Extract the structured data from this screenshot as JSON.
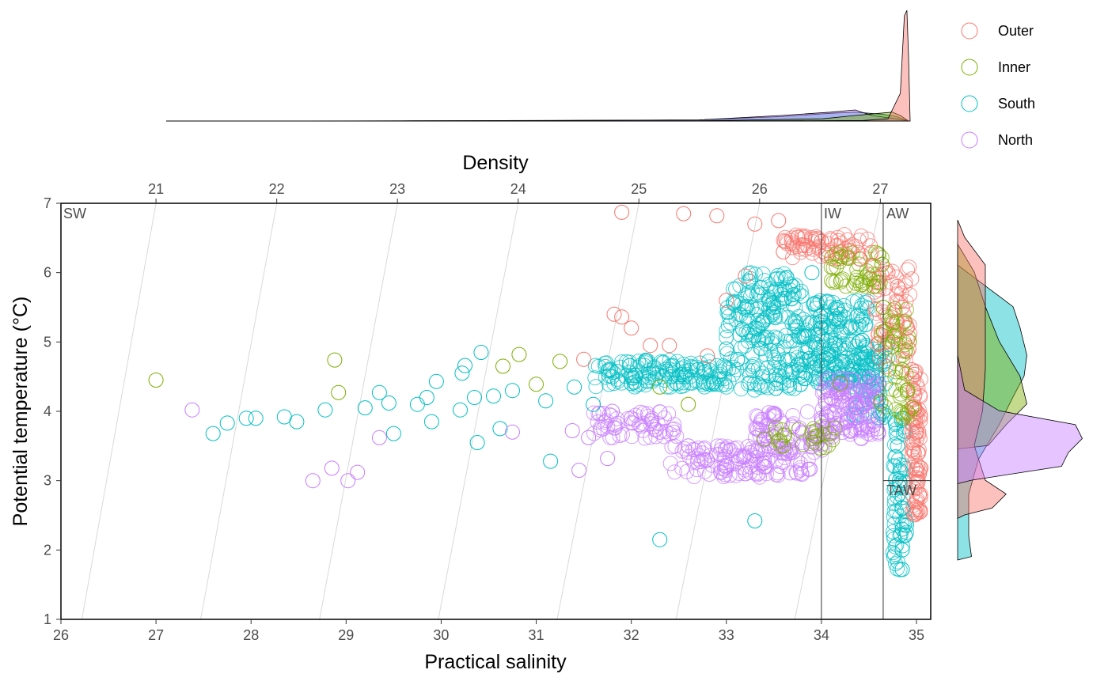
{
  "chart_data": {
    "type": "scatter",
    "title": "",
    "xlabel": "Practical salinity",
    "ylabel": "Potential temperature (°C)",
    "top_axis_label": "Density",
    "xlim": [
      26,
      35.15
    ],
    "ylim": [
      1,
      7
    ],
    "x_ticks": [
      "26",
      "27",
      "28",
      "29",
      "30",
      "31",
      "32",
      "33",
      "34",
      "35"
    ],
    "y_ticks": [
      "1",
      "2",
      "3",
      "4",
      "5",
      "6",
      "7"
    ],
    "density_ticks": [
      "21",
      "22",
      "23",
      "24",
      "25",
      "26",
      "27"
    ],
    "density_tick_salinity": [
      27.0,
      28.27,
      29.54,
      30.81,
      32.08,
      33.35,
      34.62
    ],
    "isopycnal_bottom_salinity": [
      26.22,
      27.47,
      28.72,
      29.97,
      31.22,
      32.47,
      33.72
    ],
    "water_mass_lines": {
      "IW_salinity": 34.0,
      "AW_salinity": 34.65,
      "TAW_temperature": 3.0
    },
    "region_labels": [
      "SW",
      "IW",
      "AW",
      "TAW"
    ],
    "series": [
      {
        "name": "Outer",
        "color": "#F8766D"
      },
      {
        "name": "Inner",
        "color": "#7CAE00"
      },
      {
        "name": "South",
        "color": "#00BFC4"
      },
      {
        "name": "North",
        "color": "#C77CFF"
      }
    ],
    "scatter_points": {
      "Outer": [
        [
          31.82,
          5.4
        ],
        [
          31.9,
          5.36
        ],
        [
          32.0,
          5.2
        ],
        [
          32.2,
          4.95
        ],
        [
          32.4,
          4.95
        ],
        [
          31.9,
          6.87
        ],
        [
          32.55,
          6.85
        ],
        [
          32.9,
          6.82
        ],
        [
          33.3,
          6.7
        ],
        [
          33.55,
          6.75
        ],
        [
          33.0,
          5.6
        ],
        [
          33.2,
          5.95
        ],
        [
          31.5,
          4.75
        ],
        [
          32.8,
          4.8
        ],
        [
          33.6,
          6.3
        ],
        [
          33.8,
          6.4
        ],
        [
          34.0,
          6.45
        ],
        [
          34.2,
          6.3
        ],
        [
          34.4,
          6.2
        ],
        [
          34.55,
          6.1
        ],
        [
          34.7,
          6.0
        ],
        [
          34.8,
          5.8
        ],
        [
          34.85,
          5.5
        ],
        [
          34.9,
          5.2
        ],
        [
          34.92,
          4.9
        ],
        [
          34.95,
          4.6
        ],
        [
          34.97,
          4.3
        ],
        [
          35.0,
          4.0
        ],
        [
          35.0,
          3.7
        ],
        [
          35.02,
          3.4
        ],
        [
          35.03,
          3.1
        ],
        [
          35.03,
          2.8
        ],
        [
          35.04,
          2.55
        ]
      ],
      "Inner": [
        [
          27.0,
          4.45
        ],
        [
          28.88,
          4.74
        ],
        [
          28.92,
          4.27
        ],
        [
          30.65,
          4.65
        ],
        [
          30.82,
          4.82
        ],
        [
          31.0,
          4.39
        ],
        [
          31.25,
          4.72
        ],
        [
          32.3,
          4.35
        ],
        [
          32.6,
          4.1
        ],
        [
          33.4,
          3.6
        ],
        [
          33.6,
          3.5
        ],
        [
          33.9,
          3.7
        ],
        [
          34.2,
          4.4
        ],
        [
          34.55,
          5.8
        ],
        [
          34.65,
          5.5
        ],
        [
          34.75,
          5.0
        ],
        [
          34.85,
          4.6
        ],
        [
          34.9,
          4.3
        ],
        [
          34.95,
          4.05
        ]
      ],
      "South": [
        [
          27.6,
          3.68
        ],
        [
          27.75,
          3.83
        ],
        [
          27.95,
          3.9
        ],
        [
          28.05,
          3.9
        ],
        [
          28.35,
          3.92
        ],
        [
          28.48,
          3.85
        ],
        [
          28.78,
          4.02
        ],
        [
          29.2,
          4.05
        ],
        [
          29.35,
          4.27
        ],
        [
          29.45,
          4.12
        ],
        [
          29.5,
          3.68
        ],
        [
          29.75,
          4.1
        ],
        [
          29.85,
          4.2
        ],
        [
          29.9,
          3.85
        ],
        [
          29.95,
          4.43
        ],
        [
          30.2,
          4.02
        ],
        [
          30.22,
          4.55
        ],
        [
          30.25,
          4.66
        ],
        [
          30.35,
          4.2
        ],
        [
          30.38,
          3.55
        ],
        [
          30.42,
          4.85
        ],
        [
          30.55,
          4.22
        ],
        [
          30.62,
          3.75
        ],
        [
          30.75,
          4.3
        ],
        [
          31.1,
          4.15
        ],
        [
          31.15,
          3.28
        ],
        [
          31.4,
          4.35
        ],
        [
          31.6,
          4.1
        ],
        [
          31.8,
          4.5
        ],
        [
          32.0,
          4.4
        ],
        [
          32.3,
          2.15
        ],
        [
          32.5,
          4.5
        ],
        [
          32.7,
          4.6
        ],
        [
          33.0,
          4.9
        ],
        [
          33.3,
          2.42
        ],
        [
          33.3,
          5.2
        ],
        [
          33.5,
          5.5
        ],
        [
          33.7,
          5.8
        ],
        [
          33.9,
          6.0
        ],
        [
          34.0,
          5.2
        ],
        [
          34.1,
          4.8
        ],
        [
          34.2,
          5.4
        ],
        [
          34.4,
          5.0
        ],
        [
          34.5,
          4.5
        ],
        [
          34.65,
          4.0
        ],
        [
          34.8,
          3.5
        ],
        [
          34.82,
          3.0
        ],
        [
          34.85,
          2.6
        ],
        [
          34.85,
          2.3
        ],
        [
          34.85,
          2.0
        ],
        [
          34.85,
          1.72
        ]
      ],
      "North": [
        [
          27.38,
          4.02
        ],
        [
          28.65,
          3.0
        ],
        [
          28.85,
          3.18
        ],
        [
          29.02,
          3.0
        ],
        [
          29.12,
          3.12
        ],
        [
          29.35,
          3.62
        ],
        [
          30.75,
          3.7
        ],
        [
          31.38,
          3.72
        ],
        [
          31.45,
          3.15
        ],
        [
          31.55,
          3.62
        ],
        [
          31.75,
          3.32
        ],
        [
          31.8,
          4.0
        ],
        [
          32.0,
          3.9
        ],
        [
          32.3,
          3.7
        ],
        [
          32.6,
          3.5
        ],
        [
          32.8,
          3.3
        ],
        [
          33.0,
          3.2
        ],
        [
          33.2,
          3.1
        ],
        [
          33.4,
          3.2
        ],
        [
          33.6,
          3.4
        ],
        [
          33.8,
          3.7
        ],
        [
          34.0,
          3.9
        ],
        [
          34.1,
          4.2
        ],
        [
          34.3,
          4.3
        ],
        [
          34.45,
          4.1
        ],
        [
          34.55,
          3.8
        ],
        [
          34.6,
          3.7
        ]
      ]
    },
    "clouds": [
      {
        "series": "South",
        "bands": [
          [
            31.6,
            33.0,
            4.35,
            4.75,
            140
          ],
          [
            33.0,
            33.8,
            4.3,
            6.0,
            220
          ],
          [
            33.8,
            34.5,
            4.4,
            5.6,
            200
          ],
          [
            34.3,
            34.7,
            3.9,
            5.0,
            80
          ],
          [
            34.75,
            34.9,
            1.7,
            3.9,
            70
          ]
        ]
      },
      {
        "series": "North",
        "bands": [
          [
            32.4,
            33.9,
            3.05,
            3.5,
            120
          ],
          [
            33.3,
            34.1,
            3.4,
            4.0,
            80
          ],
          [
            34.0,
            34.6,
            3.6,
            4.5,
            140
          ],
          [
            31.6,
            32.5,
            3.6,
            4.0,
            60
          ]
        ]
      },
      {
        "series": "Outer",
        "bands": [
          [
            33.6,
            34.55,
            6.2,
            6.55,
            70
          ],
          [
            34.55,
            34.95,
            4.6,
            6.1,
            70
          ],
          [
            34.95,
            35.05,
            2.5,
            4.6,
            90
          ]
        ]
      },
      {
        "series": "Inner",
        "bands": [
          [
            34.1,
            34.65,
            5.8,
            6.3,
            50
          ],
          [
            34.6,
            34.95,
            3.9,
            5.6,
            50
          ],
          [
            33.5,
            34.2,
            3.45,
            3.8,
            25
          ]
        ]
      }
    ],
    "top_density": {
      "Outer": [
        [
          26.0,
          0
        ],
        [
          30,
          0
        ],
        [
          33.5,
          0.002
        ],
        [
          34.5,
          0.005
        ],
        [
          34.8,
          0.02
        ],
        [
          34.95,
          0.25
        ],
        [
          35.0,
          0.95
        ],
        [
          35.03,
          1.0
        ],
        [
          35.05,
          0.6
        ],
        [
          35.07,
          0
        ]
      ],
      "Inner": [
        [
          30.5,
          0
        ],
        [
          32.5,
          0.002
        ],
        [
          34.0,
          0.02
        ],
        [
          34.4,
          0.05
        ],
        [
          34.7,
          0.07
        ],
        [
          34.85,
          0.08
        ],
        [
          34.95,
          0.05
        ],
        [
          35.05,
          0
        ]
      ],
      "South": [
        [
          27.5,
          0
        ],
        [
          30,
          0.002
        ],
        [
          32.5,
          0.01
        ],
        [
          33.5,
          0.04
        ],
        [
          34.1,
          0.07
        ],
        [
          34.4,
          0.08
        ],
        [
          34.75,
          0.06
        ],
        [
          34.9,
          0.04
        ],
        [
          35.05,
          0
        ]
      ],
      "North": [
        [
          27.3,
          0
        ],
        [
          29,
          0.002
        ],
        [
          32.5,
          0.01
        ],
        [
          33.5,
          0.05
        ],
        [
          34.1,
          0.08
        ],
        [
          34.4,
          0.1
        ],
        [
          34.6,
          0.05
        ],
        [
          34.9,
          0.02
        ],
        [
          35.05,
          0
        ]
      ]
    },
    "right_density": {
      "Outer": [
        [
          6.75,
          0
        ],
        [
          6.5,
          0.05
        ],
        [
          6.1,
          0.2
        ],
        [
          5.5,
          0.2
        ],
        [
          4.6,
          0.2
        ],
        [
          4.0,
          0.18
        ],
        [
          3.5,
          0.12
        ],
        [
          3.0,
          0.2
        ],
        [
          2.8,
          0.35
        ],
        [
          2.6,
          0.25
        ],
        [
          2.5,
          0.05
        ],
        [
          2.45,
          0
        ]
      ],
      "Inner": [
        [
          6.4,
          0
        ],
        [
          6.0,
          0.12
        ],
        [
          5.5,
          0.2
        ],
        [
          5.0,
          0.3
        ],
        [
          4.5,
          0.45
        ],
        [
          4.1,
          0.5
        ],
        [
          3.8,
          0.35
        ],
        [
          3.5,
          0.22
        ],
        [
          3.45,
          0
        ]
      ],
      "South": [
        [
          6.1,
          0
        ],
        [
          5.8,
          0.2
        ],
        [
          5.5,
          0.4
        ],
        [
          5.2,
          0.45
        ],
        [
          4.8,
          0.5
        ],
        [
          4.5,
          0.48
        ],
        [
          4.2,
          0.4
        ],
        [
          3.8,
          0.3
        ],
        [
          3.3,
          0.15
        ],
        [
          2.8,
          0.08
        ],
        [
          2.2,
          0.08
        ],
        [
          1.9,
          0.1
        ],
        [
          1.85,
          0
        ]
      ],
      "North": [
        [
          4.8,
          0
        ],
        [
          4.3,
          0.05
        ],
        [
          4.0,
          0.3
        ],
        [
          3.8,
          0.85
        ],
        [
          3.6,
          0.9
        ],
        [
          3.4,
          0.8
        ],
        [
          3.2,
          0.75
        ],
        [
          3.0,
          0.1
        ],
        [
          2.95,
          0
        ]
      ]
    }
  }
}
